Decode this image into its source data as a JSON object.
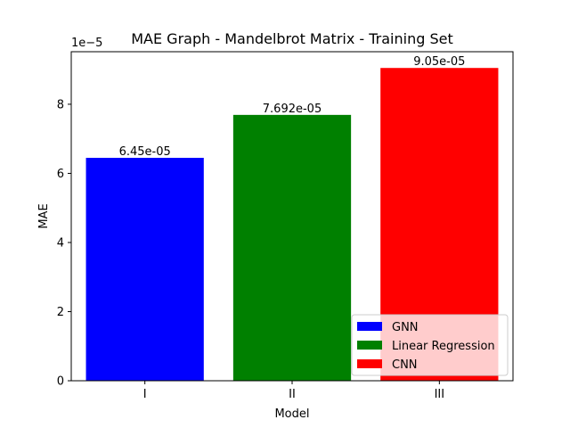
{
  "chart_data": {
    "type": "bar",
    "title": "MAE Graph - Mandelbrot Matrix - Training Set",
    "xlabel": "Model",
    "ylabel": "MAE",
    "categories": [
      "I",
      "II",
      "III"
    ],
    "values": [
      6.45e-05,
      7.692e-05,
      9.05e-05
    ],
    "value_labels": [
      "6.45e-05",
      "7.692e-05",
      "9.05e-05"
    ],
    "colors": [
      "#0000ff",
      "#008000",
      "#ff0000"
    ],
    "series_names": [
      "GNN",
      "Linear Regression",
      "CNN"
    ],
    "ylim": [
      0,
      9.52e-05
    ],
    "y_ticks": [
      0,
      2e-05,
      4e-05,
      6e-05,
      8e-05
    ],
    "y_tick_labels": [
      "0",
      "2",
      "4",
      "6",
      "8"
    ],
    "y_offset_label": "1e−5",
    "legend_position": "lower right",
    "grid": false
  }
}
